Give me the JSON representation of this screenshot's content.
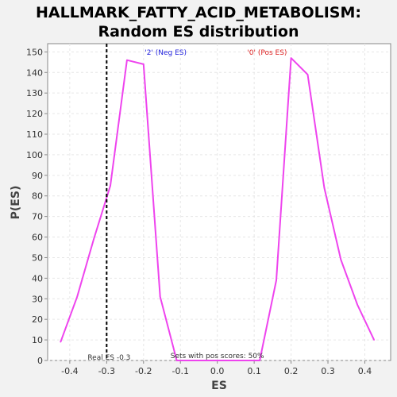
{
  "chart_data": {
    "type": "line",
    "title": "HALLMARK_FATTY_ACID_METABOLISM:",
    "subtitle": "Random ES distribution",
    "xlabel": "ES",
    "ylabel": "P(ES)",
    "xlim": [
      -0.46,
      0.47
    ],
    "ylim": [
      0,
      154
    ],
    "xticks": [
      -0.4,
      -0.3,
      -0.2,
      -0.1,
      0.0,
      0.1,
      0.2,
      0.3,
      0.4
    ],
    "xtick_labels": [
      "-0.4",
      "-0.3",
      "-0.2",
      "-0.1",
      "0.0",
      "0.1",
      "0.2",
      "0.3",
      "0.4"
    ],
    "yticks": [
      0,
      10,
      20,
      30,
      40,
      50,
      60,
      70,
      80,
      90,
      100,
      110,
      120,
      130,
      140,
      150
    ],
    "ytick_labels": [
      "0",
      "10",
      "20",
      "30",
      "40",
      "50",
      "60",
      "70",
      "80",
      "90",
      "100",
      "110",
      "120",
      "130",
      "140",
      "150"
    ],
    "grid": true,
    "series": [
      {
        "color": "#ee44ee",
        "x": [
          -0.425,
          -0.38,
          -0.335,
          -0.29,
          -0.245,
          -0.2,
          -0.155,
          -0.11,
          -0.065,
          -0.02,
          0.025,
          0.07,
          0.115,
          0.16,
          0.2,
          0.245,
          0.29,
          0.335,
          0.38,
          0.425
        ],
        "y": [
          9,
          31,
          59,
          85,
          146,
          144,
          31,
          0,
          0,
          0,
          0,
          0,
          0,
          39,
          147,
          139,
          84,
          49,
          27,
          10
        ]
      }
    ],
    "real_es": -0.3,
    "real_es_color": "#000000",
    "annotations": {
      "neg_es": "'2' (Neg ES)",
      "neg_es_color": "#2222dd",
      "pos_es": "'0' (Pos ES)",
      "pos_es_color": "#dd2222",
      "real_es_label": "Real ES -0.3",
      "pos_scores_label": "Sets with pos scores: 50%"
    },
    "colors": {
      "background": "#f2f2f2",
      "plot_background": "#ffffff",
      "grid": "#e6e6e6",
      "axis": "#888888"
    }
  }
}
